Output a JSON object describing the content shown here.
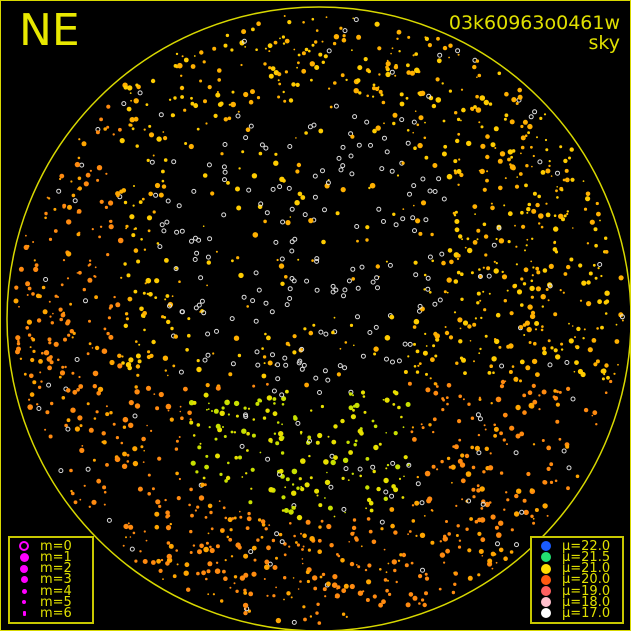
{
  "direction": "NE",
  "frame_id": "03k60963o0461w",
  "mode": "sky",
  "magnitude_legend": [
    {
      "label": "m=0",
      "hollow": true
    },
    {
      "label": "m=1"
    },
    {
      "label": "m=2"
    },
    {
      "label": "m=3"
    },
    {
      "label": "m=4"
    },
    {
      "label": "m=5"
    },
    {
      "label": "m=6"
    }
  ],
  "magnitude_color": "#ff00ff",
  "sky_brightness_legend": [
    {
      "label": "μ=22.0",
      "color": "#1a5cff"
    },
    {
      "label": "μ=21.5",
      "color": "#22e070"
    },
    {
      "label": "μ=21.0",
      "color": "#ffdd00"
    },
    {
      "label": "μ=20.0",
      "color": "#ff5a10"
    },
    {
      "label": "μ=19.0",
      "color": "#ff6060"
    },
    {
      "label": "μ=18.0",
      "color": "#ffc0cc"
    },
    {
      "label": "μ=17.0",
      "color": "#ffffff"
    }
  ],
  "accent_color": "#e0e000"
}
